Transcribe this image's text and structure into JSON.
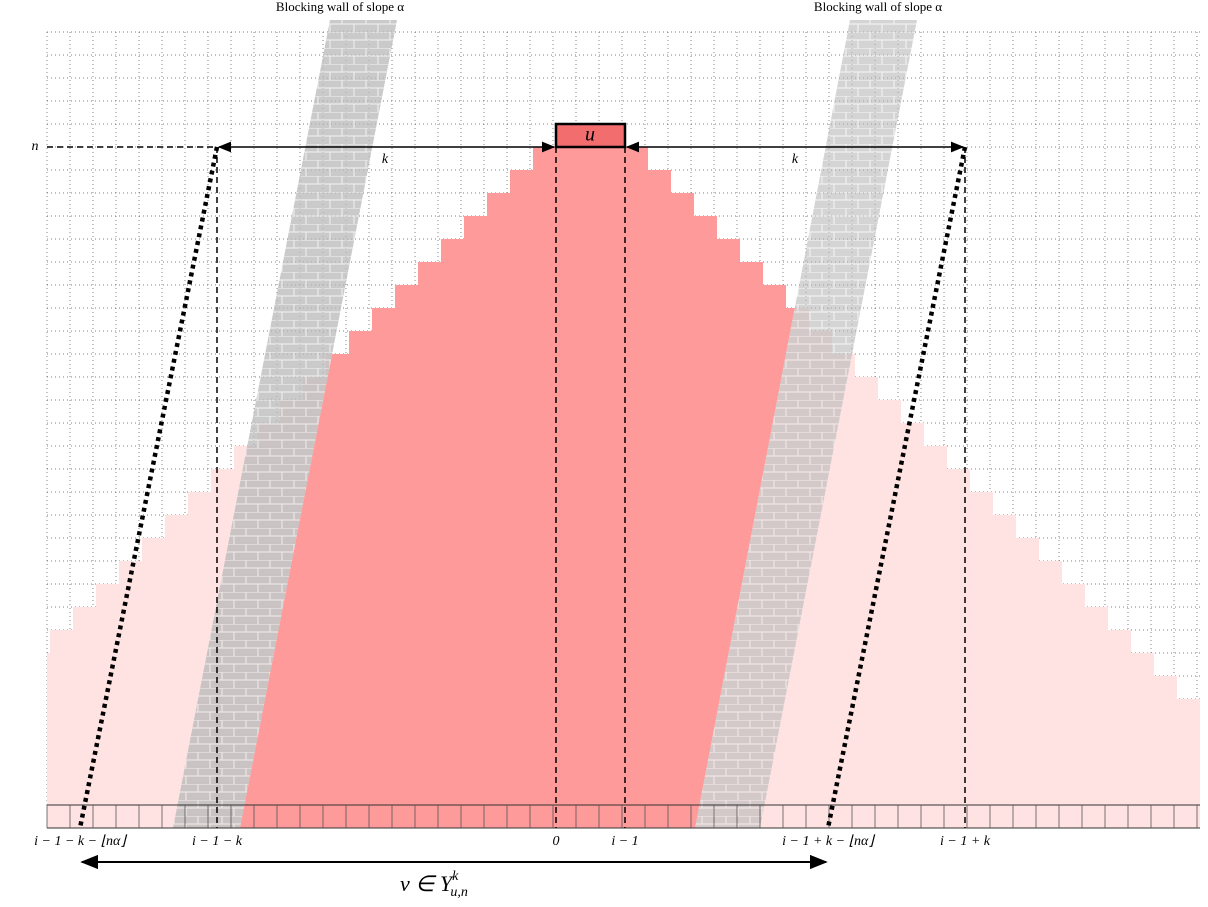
{
  "walls": [
    {
      "label": "Blocking wall of slope α"
    },
    {
      "label": "Blocking wall of slope α"
    }
  ],
  "row_label": "n",
  "node": "u",
  "distances": [
    "k",
    "k"
  ],
  "bottom_labels": [
    "i − 1 − k − ⌊nα⌋",
    "i − 1 − k",
    "0",
    "i − 1",
    "i − 1 + k − ⌊nα⌋",
    "i − 1 + k"
  ],
  "set_label": {
    "base": "v ∈ Y",
    "sup": "k",
    "sub": "u,n"
  }
}
